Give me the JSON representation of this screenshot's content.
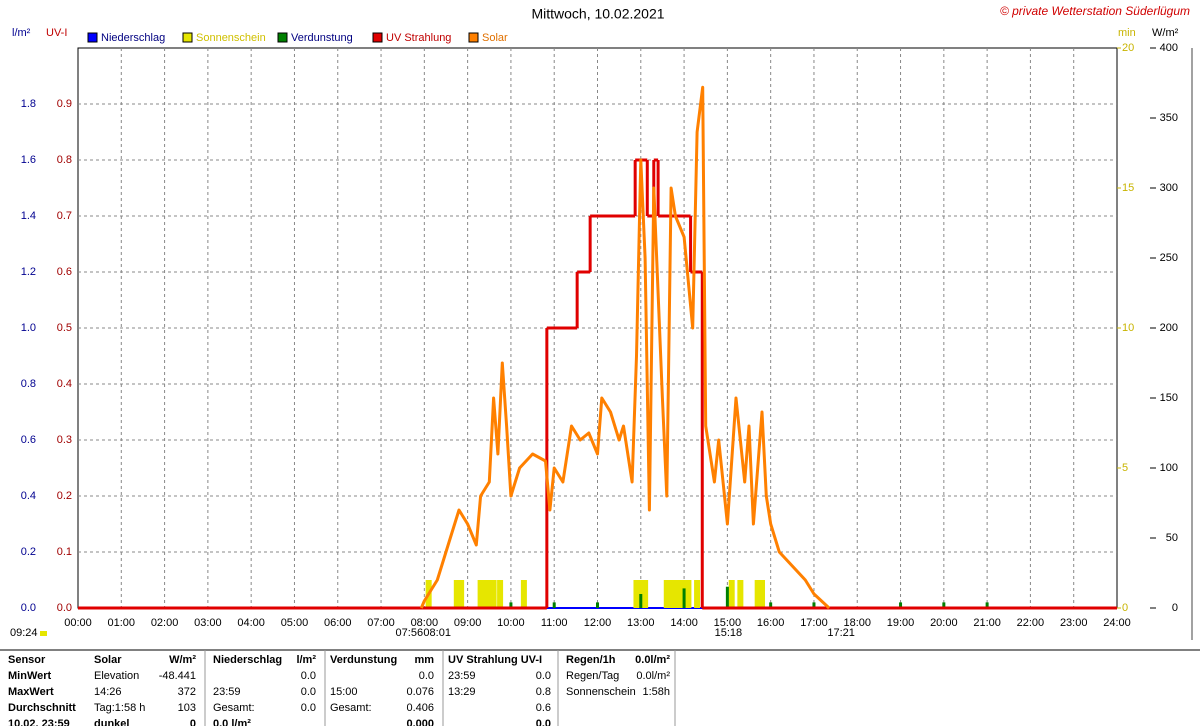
{
  "chart_data": {
    "type": "line",
    "title": "Mittwoch, 10.02.2021",
    "copyright": "© private Wetterstation Süderlügum",
    "y_unit": "l/m²",
    "uv_unit": "UV-I",
    "min_unit": "min",
    "y2_unit": "W/m²",
    "xlim": [
      0,
      24
    ],
    "xticks": [
      {
        "value": 0,
        "label": "00:00"
      },
      {
        "value": 1,
        "label": "01:00"
      },
      {
        "value": 2,
        "label": "02:00"
      },
      {
        "value": 3,
        "label": "03:00"
      },
      {
        "value": 4,
        "label": "04:00"
      },
      {
        "value": 5,
        "label": "05:00"
      },
      {
        "value": 6,
        "label": "06:00"
      },
      {
        "value": 7,
        "label": "07:00"
      },
      {
        "value": 8,
        "label": "08:00"
      },
      {
        "value": 9,
        "label": "09:00"
      },
      {
        "value": 10,
        "label": "10:00"
      },
      {
        "value": 11,
        "label": "11:00"
      },
      {
        "value": 12,
        "label": "12:00"
      },
      {
        "value": 13,
        "label": "13:00"
      },
      {
        "value": 14,
        "label": "14:00"
      },
      {
        "value": 15,
        "label": "15:00"
      },
      {
        "value": 16,
        "label": "16:00"
      },
      {
        "value": 17,
        "label": "17:00"
      },
      {
        "value": 18,
        "label": "18:00"
      },
      {
        "value": 19,
        "label": "19:00"
      },
      {
        "value": 20,
        "label": "20:00"
      },
      {
        "value": 21,
        "label": "21:00"
      },
      {
        "value": 22,
        "label": "22:00"
      },
      {
        "value": 23,
        "label": "23:00"
      },
      {
        "value": 24,
        "label": "24:00"
      }
    ],
    "ylim": [
      0,
      2
    ],
    "yticks": [
      {
        "value": 0,
        "label": "0.0"
      },
      0.2,
      0.4,
      0.6,
      0.8,
      {
        "value": 1,
        "label": "1.0"
      },
      1.2,
      1.4,
      1.6,
      1.8
    ],
    "uv_ylim": [
      0,
      1
    ],
    "uv_yticks": [
      {
        "value": 0,
        "label": "0.0"
      },
      0.1,
      0.2,
      0.3,
      0.4,
      0.5,
      0.6,
      0.7,
      0.8,
      0.9
    ],
    "min_ylim": [
      0,
      20
    ],
    "min_yticks": [
      0,
      5,
      10,
      15,
      20
    ],
    "y2lim": [
      0,
      400
    ],
    "y2ticks": [
      0,
      50,
      100,
      150,
      200,
      250,
      300,
      350,
      400
    ],
    "grid": true,
    "series": [
      {
        "name": "Niederschlag",
        "color": "#0000ff",
        "axis": "y",
        "style": "bar",
        "x": [],
        "values": []
      },
      {
        "name": "Sonnenschein",
        "color": "#e6e600",
        "axis": "min",
        "style": "bar",
        "x": [
          8.1,
          8.75,
          8.85,
          9.3,
          9.4,
          9.5,
          9.6,
          9.75,
          10.3,
          12.9,
          13.0,
          13.1,
          13.6,
          13.7,
          13.8,
          13.9,
          14.0,
          14.1,
          14.3,
          15.1,
          15.3,
          15.7,
          15.8
        ],
        "values": [
          1,
          1,
          1,
          1,
          1,
          1,
          1,
          1,
          1,
          1,
          1,
          1,
          1,
          1,
          1,
          1,
          1,
          1,
          1,
          1,
          1,
          1,
          1
        ]
      },
      {
        "name": "Verdunstung",
        "color": "#008000",
        "axis": "y",
        "style": "bar",
        "x": [
          10,
          11,
          12,
          13,
          14,
          15,
          16,
          17,
          19,
          20,
          21
        ],
        "values": [
          0.02,
          0.02,
          0.02,
          0.05,
          0.07,
          0.076,
          0.02,
          0.02,
          0.02,
          0.02,
          0.02
        ]
      },
      {
        "name": "UV Strahlung",
        "color": "#e00000",
        "axis": "uv",
        "style": "step",
        "x": [
          0,
          10.83,
          11.53,
          11.83,
          12.87,
          13.15,
          13.3,
          13.4,
          14.15,
          14.42
        ],
        "values": [
          0,
          0.5,
          0.6,
          0.7,
          0.8,
          0.7,
          0.8,
          0.7,
          0.6,
          0
        ]
      },
      {
        "name": "Solar",
        "color": "#ff8000",
        "axis": "y2",
        "style": "line",
        "x": [
          7.93,
          8.0,
          8.3,
          8.6,
          8.8,
          9.0,
          9.2,
          9.3,
          9.5,
          9.6,
          9.7,
          9.8,
          9.9,
          10.0,
          10.2,
          10.5,
          10.8,
          10.9,
          11.0,
          11.2,
          11.4,
          11.6,
          11.8,
          12.0,
          12.1,
          12.3,
          12.5,
          12.6,
          12.8,
          12.9,
          13.0,
          13.1,
          13.2,
          13.3,
          13.5,
          13.6,
          13.7,
          13.8,
          14.0,
          14.2,
          14.3,
          14.43,
          14.5,
          14.7,
          14.8,
          15.0,
          15.2,
          15.4,
          15.5,
          15.6,
          15.8,
          15.9,
          16.0,
          16.2,
          16.5,
          16.8,
          17.0,
          17.35
        ],
        "values": [
          0,
          5,
          20,
          50,
          70,
          60,
          45,
          80,
          90,
          150,
          110,
          175,
          130,
          80,
          100,
          110,
          105,
          70,
          100,
          90,
          130,
          120,
          125,
          110,
          150,
          140,
          120,
          130,
          90,
          180,
          320,
          250,
          70,
          300,
          150,
          80,
          300,
          280,
          265,
          200,
          340,
          372,
          130,
          90,
          120,
          60,
          150,
          90,
          130,
          60,
          140,
          80,
          60,
          40,
          30,
          20,
          10,
          0
        ]
      }
    ],
    "day_length": "09:24",
    "annotations": [
      {
        "text": "07:56",
        "x": 7.93
      },
      {
        "text": "08:01",
        "x": 8.02
      },
      {
        "text": "15:18",
        "x": 15.3
      },
      {
        "text": "17:21",
        "x": 17.35
      }
    ]
  },
  "stats_table": {
    "rows": [
      [
        "Sensor",
        "Solar",
        "W/m²",
        "Niederschlag",
        "l/m²",
        "Verdunstung",
        "mm",
        "UV Strahlung UV-I",
        null,
        "Regen/1h",
        "0.0l/m²"
      ],
      [
        "MinWert",
        "Elevation",
        "-48.441",
        null,
        "0.0",
        null,
        "0.0",
        "23:59",
        "0.0",
        "Regen/Tag",
        "0.0l/m²"
      ],
      [
        "MaxWert",
        "14:26",
        "372",
        "23:59",
        "0.0",
        "15:00",
        "0.076",
        "13:29",
        "0.8",
        "Sonnenschein",
        "1:58h"
      ],
      [
        "Durchschnitt",
        "Tag:1:58 h",
        "103",
        "Gesamt:",
        "0.0",
        "Gesamt:",
        "0.406",
        null,
        "0.6",
        null,
        null
      ],
      [
        "10.02. 23:59",
        "dunkel",
        "0",
        "0.0 l/m²",
        null,
        null,
        "0.000",
        null,
        "0.0",
        null,
        null
      ]
    ]
  }
}
